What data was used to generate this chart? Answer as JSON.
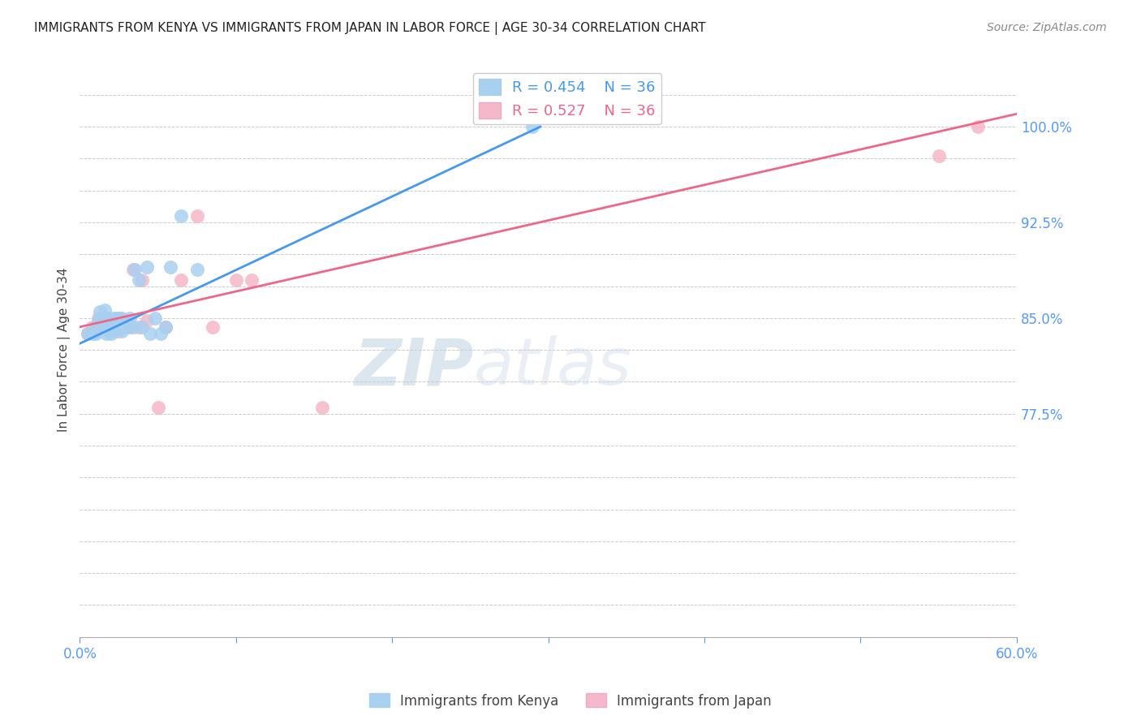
{
  "title": "IMMIGRANTS FROM KENYA VS IMMIGRANTS FROM JAPAN IN LABOR FORCE | AGE 30-34 CORRELATION CHART",
  "source": "Source: ZipAtlas.com",
  "ylabel": "In Labor Force | Age 30-34",
  "xlim": [
    0.0,
    0.6
  ],
  "ylim": [
    0.6,
    1.05
  ],
  "kenya_color": "#a8d0f0",
  "japan_color": "#f5b8c8",
  "kenya_line_color": "#4499ee",
  "japan_line_color": "#ee6688",
  "right_tick_color": "#5599ff",
  "x_tick_color": "#5599ff",
  "background_color": "#ffffff",
  "grid_color": "#cccccc",
  "kenya_x": [
    0.005,
    0.008,
    0.01,
    0.01,
    0.012,
    0.013,
    0.015,
    0.016,
    0.016,
    0.017,
    0.018,
    0.019,
    0.02,
    0.021,
    0.022,
    0.023,
    0.024,
    0.025,
    0.026,
    0.027,
    0.028,
    0.03,
    0.032,
    0.034,
    0.035,
    0.038,
    0.04,
    0.043,
    0.045,
    0.048,
    0.052,
    0.055,
    0.058,
    0.065,
    0.075,
    0.29
  ],
  "kenya_y": [
    0.838,
    0.838,
    0.838,
    0.843,
    0.848,
    0.855,
    0.843,
    0.85,
    0.856,
    0.838,
    0.843,
    0.85,
    0.838,
    0.843,
    0.85,
    0.843,
    0.85,
    0.843,
    0.85,
    0.84,
    0.843,
    0.843,
    0.85,
    0.843,
    0.888,
    0.88,
    0.843,
    0.89,
    0.838,
    0.85,
    0.838,
    0.843,
    0.89,
    0.93,
    0.888,
    1.0
  ],
  "japan_x": [
    0.005,
    0.008,
    0.01,
    0.011,
    0.012,
    0.013,
    0.015,
    0.016,
    0.017,
    0.018,
    0.019,
    0.02,
    0.021,
    0.022,
    0.023,
    0.024,
    0.025,
    0.026,
    0.027,
    0.028,
    0.03,
    0.032,
    0.034,
    0.038,
    0.04,
    0.043,
    0.05,
    0.055,
    0.065,
    0.075,
    0.085,
    0.1,
    0.11,
    0.155,
    0.55,
    0.575
  ],
  "japan_y": [
    0.838,
    0.843,
    0.84,
    0.845,
    0.85,
    0.843,
    0.848,
    0.843,
    0.85,
    0.84,
    0.843,
    0.84,
    0.843,
    0.848,
    0.843,
    0.84,
    0.85,
    0.843,
    0.85,
    0.843,
    0.848,
    0.843,
    0.888,
    0.843,
    0.88,
    0.848,
    0.78,
    0.843,
    0.88,
    0.93,
    0.843,
    0.88,
    0.88,
    0.78,
    0.977,
    1.0
  ],
  "kenya_line_x0": 0.0,
  "kenya_line_y0": 0.83,
  "kenya_line_x1": 0.295,
  "kenya_line_y1": 1.0,
  "japan_line_x0": 0.0,
  "japan_line_y0": 0.843,
  "japan_line_x1": 0.6,
  "japan_line_y1": 1.01,
  "legend_kenya_label": "R = 0.454    N = 36",
  "legend_japan_label": "R = 0.527    N = 36",
  "bottom_legend_kenya": "Immigrants from Kenya",
  "bottom_legend_japan": "Immigrants from Japan"
}
